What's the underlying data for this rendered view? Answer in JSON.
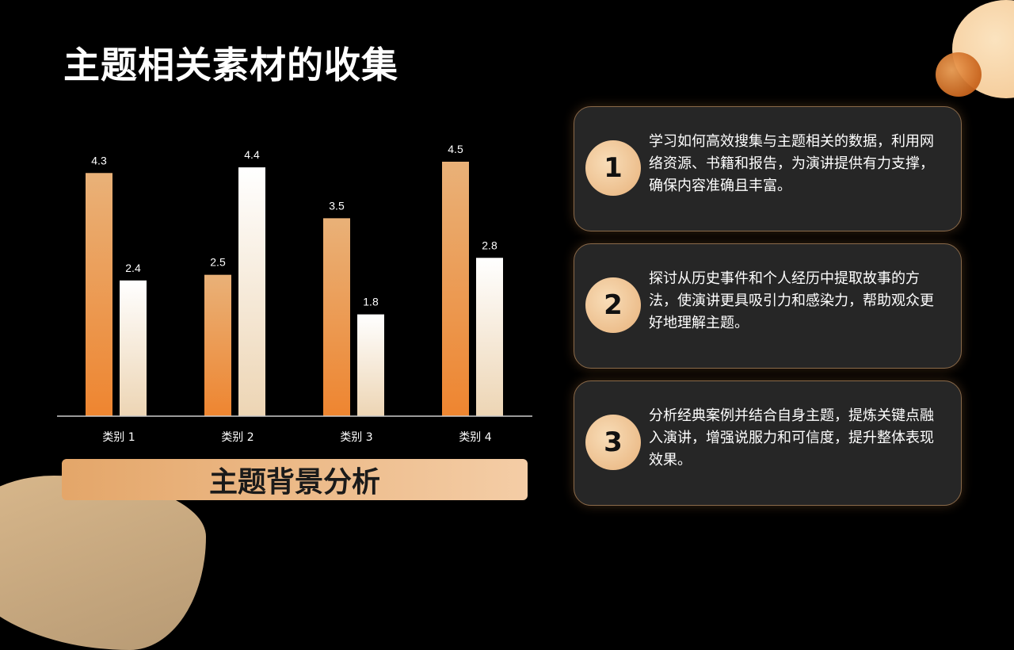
{
  "page": {
    "title": "主题相关素材的收集"
  },
  "banner": {
    "label": "主题背景分析"
  },
  "cards": [
    {
      "number": "1",
      "text": "学习如何高效搜集与主题相关的数据，利用网络资源、书籍和报告，为演讲提供有力支撑，确保内容准确且丰富。"
    },
    {
      "number": "2",
      "text": "探讨从历史事件和个人经历中提取故事的方法，使演讲更具吸引力和感染力，帮助观众更好地理解主题。"
    },
    {
      "number": "3",
      "text": "分析经典案例并结合自身主题，提炼关键点融入演讲，增强说服力和可信度，提升整体表现效果。"
    }
  ],
  "chart_data": {
    "type": "bar",
    "categories": [
      "类别 1",
      "类别 2",
      "类别 3",
      "类别 4"
    ],
    "series": [
      {
        "values": [
          4.3,
          2.5,
          3.5,
          4.5
        ],
        "color_top": "#e9b178",
        "color_bottom": "#ee8530"
      },
      {
        "values": [
          2.4,
          4.4,
          1.8,
          2.8
        ],
        "color_top": "#ffffff",
        "color_bottom": "#edd5b4"
      }
    ],
    "ylim": [
      0,
      4.5
    ],
    "grid": false,
    "legend": "none",
    "data_labels": true
  }
}
